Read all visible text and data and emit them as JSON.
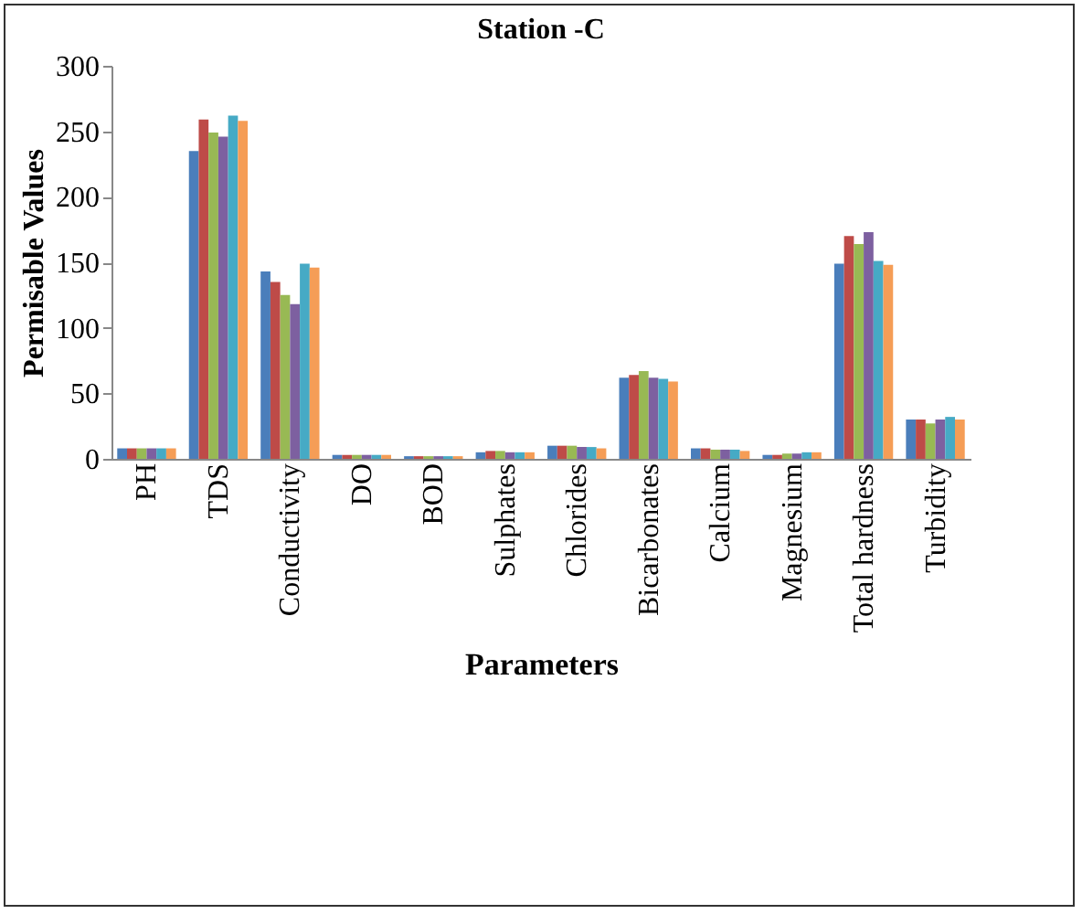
{
  "chart_data": {
    "type": "bar",
    "title": "Station -C",
    "xlabel": "Parameters",
    "ylabel": "Permisable Values",
    "categories": [
      "PH",
      "TDS",
      "Conductivity",
      "DO",
      "BOD",
      "Sulphates",
      "Chlorides",
      "Bicarbonates",
      "Calcium",
      "Magnesium",
      "Total hardness",
      "Turbidity"
    ],
    "ylim": [
      0,
      300
    ],
    "yticks": [
      0,
      50,
      100,
      150,
      200,
      250,
      300
    ],
    "grid": false,
    "legend": false,
    "series": [
      {
        "color": "#4a7ebb",
        "values": [
          8,
          235,
          143,
          3,
          2,
          5,
          10,
          62,
          8,
          3,
          149,
          30
        ]
      },
      {
        "color": "#be4b48",
        "values": [
          8,
          259,
          135,
          3,
          2,
          6,
          10,
          64,
          8,
          3,
          170,
          30
        ]
      },
      {
        "color": "#98b954",
        "values": [
          8,
          249,
          125,
          3,
          2,
          6,
          10,
          67,
          7,
          4,
          164,
          27
        ]
      },
      {
        "color": "#7d60a0",
        "values": [
          8,
          246,
          118,
          3,
          2,
          5,
          9,
          62,
          7,
          4,
          173,
          30
        ]
      },
      {
        "color": "#46aac5",
        "values": [
          8,
          262,
          149,
          3,
          2,
          5,
          9,
          61,
          7,
          5,
          151,
          32
        ]
      },
      {
        "color": "#f59d56",
        "values": [
          8,
          258,
          146,
          3,
          2,
          5,
          8,
          59,
          6,
          5,
          148,
          30
        ]
      }
    ]
  }
}
